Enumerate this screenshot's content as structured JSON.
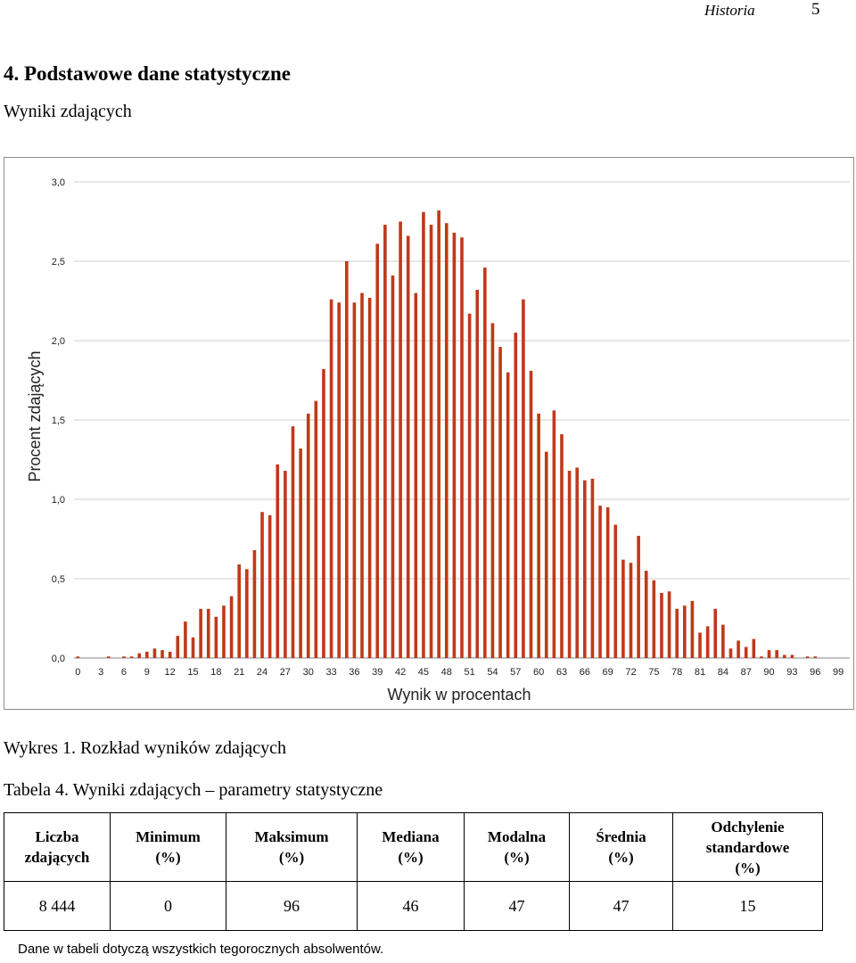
{
  "header": {
    "section": "Historia",
    "page_number": "5"
  },
  "heading": "4.  Podstawowe dane statystyczne",
  "subheading": "Wyniki zdających",
  "figure_caption": "Wykres 1. Rozkład wyników zdających",
  "table_caption": "Tabela 4.  Wyniki zdających – parametry statystyczne",
  "table": {
    "headers": [
      [
        "Liczba",
        "zdających"
      ],
      [
        "Minimum",
        "(%)"
      ],
      [
        "Maksimum",
        "(%)"
      ],
      [
        "Mediana",
        "(%)"
      ],
      [
        "Modalna",
        "(%)"
      ],
      [
        "Średnia",
        "(%)"
      ],
      [
        "Odchylenie",
        "standardowe",
        "(%)"
      ]
    ],
    "values": [
      "8 444",
      "0",
      "96",
      "46",
      "47",
      "47",
      "15"
    ]
  },
  "footnote": "Dane w tabeli dotyczą wszystkich tegorocznych absolwentów.",
  "chart_data": {
    "type": "bar",
    "title": "",
    "xlabel": "Wynik w procentach",
    "ylabel": "Procent  zdających",
    "ylim": [
      0,
      3
    ],
    "y_ticks": [
      "0,0",
      "0,5",
      "1,0",
      "1,5",
      "2,0",
      "2,5",
      "3,0"
    ],
    "x_tick_labels": [
      "0",
      "3",
      "6",
      "9",
      "12",
      "15",
      "18",
      "21",
      "24",
      "27",
      "30",
      "33",
      "36",
      "39",
      "42",
      "45",
      "48",
      "51",
      "54",
      "57",
      "60",
      "63",
      "66",
      "69",
      "72",
      "75",
      "78",
      "81",
      "84",
      "87",
      "90",
      "93",
      "96",
      "99"
    ],
    "bar_color": "#c0391b",
    "categories": [
      0,
      1,
      2,
      3,
      4,
      5,
      6,
      7,
      8,
      9,
      10,
      11,
      12,
      13,
      14,
      15,
      16,
      17,
      18,
      19,
      20,
      21,
      22,
      23,
      24,
      25,
      26,
      27,
      28,
      29,
      30,
      31,
      32,
      33,
      34,
      35,
      36,
      37,
      38,
      39,
      40,
      41,
      42,
      43,
      44,
      45,
      46,
      47,
      48,
      49,
      50,
      51,
      52,
      53,
      54,
      55,
      56,
      57,
      58,
      59,
      60,
      61,
      62,
      63,
      64,
      65,
      66,
      67,
      68,
      69,
      70,
      71,
      72,
      73,
      74,
      75,
      76,
      77,
      78,
      79,
      80,
      81,
      82,
      83,
      84,
      85,
      86,
      87,
      88,
      89,
      90,
      91,
      92,
      93,
      94,
      95,
      96,
      97,
      98,
      99,
      100
    ],
    "values": [
      0.01,
      0,
      0,
      0,
      0.01,
      0,
      0.01,
      0.01,
      0.03,
      0.04,
      0.06,
      0.05,
      0.04,
      0.14,
      0.23,
      0.13,
      0.31,
      0.31,
      0.26,
      0.33,
      0.39,
      0.59,
      0.56,
      0.68,
      0.92,
      0.9,
      1.22,
      1.18,
      1.46,
      1.32,
      1.54,
      1.62,
      1.82,
      2.26,
      2.24,
      2.5,
      2.24,
      2.3,
      2.27,
      2.61,
      2.73,
      2.41,
      2.75,
      2.66,
      2.3,
      2.81,
      2.73,
      2.82,
      2.74,
      2.68,
      2.65,
      2.17,
      2.32,
      2.46,
      2.11,
      1.96,
      1.8,
      2.05,
      2.26,
      1.81,
      1.54,
      1.3,
      1.56,
      1.41,
      1.18,
      1.2,
      1.12,
      1.13,
      0.96,
      0.95,
      0.84,
      0.62,
      0.6,
      0.77,
      0.55,
      0.49,
      0.41,
      0.42,
      0.31,
      0.33,
      0.36,
      0.16,
      0.2,
      0.31,
      0.21,
      0.06,
      0.11,
      0.07,
      0.12,
      0.01,
      0.05,
      0.05,
      0.02,
      0.02,
      0,
      0.01,
      0.01,
      0,
      0,
      0,
      0
    ]
  }
}
